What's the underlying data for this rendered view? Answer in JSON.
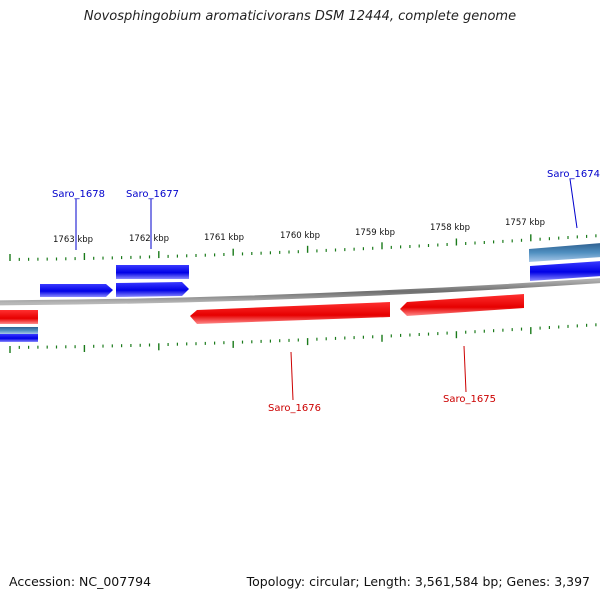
{
  "header": {
    "title": "Novosphingobium aromaticivorans DSM 12444, complete genome"
  },
  "footer": {
    "accession": "Accession: NC_007794",
    "summary": "Topology: circular; Length: 3,561,584 bp; Genes: 3,397"
  },
  "map": {
    "scale_ticks": [
      "1763 kbp",
      "1762 kbp",
      "1761 kbp",
      "1760 kbp",
      "1759 kbp",
      "1758 kbp",
      "1757 kbp"
    ],
    "gene_labels": {
      "saro_1678": "Saro_1678",
      "saro_1677": "Saro_1677",
      "saro_1674": "Saro_1674",
      "saro_1676": "Saro_1676",
      "saro_1675": "Saro_1675"
    },
    "colors": {
      "forward_strand": "#0000ee",
      "reverse_strand": "#ee0000",
      "highlight_gene": "#4a86b8",
      "tick": "#1a7a1a",
      "backbone": "#888888"
    }
  }
}
